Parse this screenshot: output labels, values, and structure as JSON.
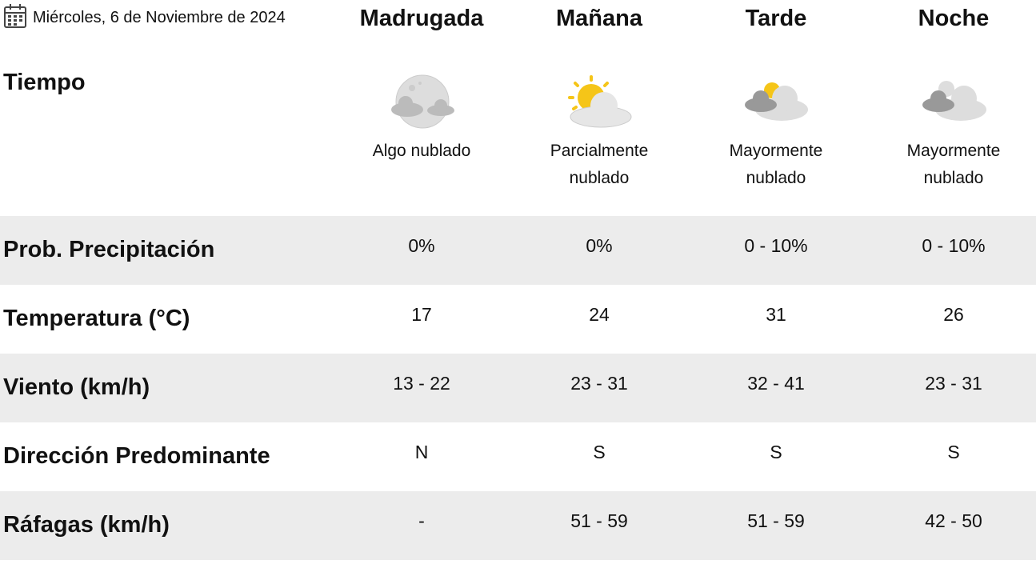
{
  "header": {
    "date": "Miércoles, 6 de Noviembre de 2024",
    "columns": [
      "Madrugada",
      "Mañana",
      "Tarde",
      "Noche"
    ]
  },
  "weather": {
    "label": "Tiempo",
    "descriptions": [
      "Algo nublado",
      "Parcialmente nublado",
      "Mayormente nublado",
      "Mayormente nublado"
    ]
  },
  "table": {
    "rows": [
      {
        "label": "Prob. Precipitación",
        "cells": [
          "0%",
          "0%",
          "0 - 10%",
          "0 - 10%"
        ]
      },
      {
        "label": "Temperatura (°C)",
        "cells": [
          "17",
          "24",
          "31",
          "26"
        ]
      },
      {
        "label": "Viento (km/h)",
        "cells": [
          "13 - 22",
          "23 - 31",
          "32 - 41",
          "23 - 31"
        ]
      },
      {
        "label": "Dirección Predominante",
        "cells": [
          "N",
          "S",
          "S",
          "S"
        ]
      },
      {
        "label": "Ráfagas (km/h)",
        "cells": [
          "-",
          "51 - 59",
          "51 - 59",
          "42 - 50"
        ]
      }
    ]
  }
}
